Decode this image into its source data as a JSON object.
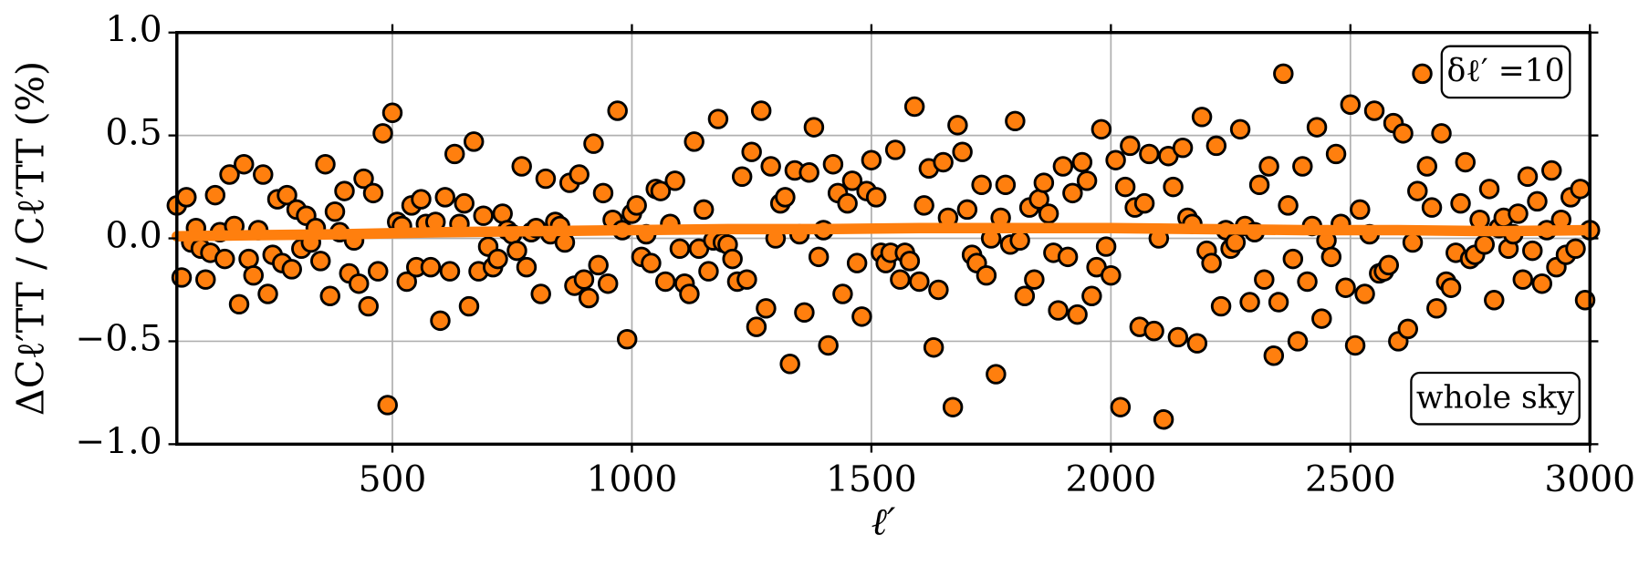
{
  "chart_data": {
    "type": "scatter",
    "xlabel": "ℓ′",
    "ylabel": "ΔCℓ′TT / Cℓ′TT (%)",
    "annotations": [
      "δℓ′ =10",
      "whole sky"
    ],
    "xlim": [
      50,
      3000
    ],
    "ylim": [
      -1,
      1
    ],
    "xticks": [
      500,
      1000,
      1500,
      2000,
      2500,
      3000
    ],
    "yticks": [
      {
        "value": -1,
        "label": "−1.0"
      },
      {
        "value": -0.5,
        "label": "−0.5"
      },
      {
        "value": 0,
        "label": "0.0"
      },
      {
        "value": 0.5,
        "label": "0.5"
      },
      {
        "value": 1,
        "label": "1.0"
      }
    ],
    "grid": true,
    "series": [
      {
        "type": "scatter",
        "color": "#ff7f0e",
        "x": [
          50,
          60,
          70,
          80,
          90,
          100,
          110,
          120,
          130,
          140,
          150,
          160,
          170,
          180,
          190,
          200,
          210,
          220,
          230,
          240,
          250,
          260,
          270,
          280,
          290,
          300,
          310,
          320,
          330,
          340,
          350,
          360,
          370,
          380,
          390,
          400,
          410,
          420,
          430,
          440,
          450,
          460,
          470,
          480,
          490,
          500,
          510,
          520,
          530,
          540,
          550,
          560,
          570,
          580,
          590,
          600,
          610,
          620,
          630,
          640,
          650,
          660,
          670,
          680,
          690,
          700,
          710,
          720,
          730,
          740,
          750,
          760,
          770,
          780,
          790,
          800,
          810,
          820,
          830,
          840,
          850,
          860,
          870,
          880,
          890,
          900,
          910,
          920,
          930,
          940,
          950,
          960,
          970,
          980,
          990,
          1000,
          1010,
          1020,
          1030,
          1040,
          1050,
          1060,
          1070,
          1080,
          1090,
          1100,
          1110,
          1120,
          1130,
          1140,
          1150,
          1160,
          1170,
          1180,
          1190,
          1200,
          1210,
          1220,
          1230,
          1240,
          1250,
          1260,
          1270,
          1280,
          1290,
          1300,
          1310,
          1320,
          1330,
          1340,
          1350,
          1360,
          1370,
          1380,
          1390,
          1400,
          1410,
          1420,
          1430,
          1440,
          1450,
          1460,
          1470,
          1480,
          1490,
          1500,
          1510,
          1520,
          1530,
          1540,
          1550,
          1560,
          1570,
          1580,
          1590,
          1600,
          1610,
          1620,
          1630,
          1640,
          1650,
          1660,
          1670,
          1680,
          1690,
          1700,
          1710,
          1720,
          1730,
          1740,
          1750,
          1760,
          1770,
          1780,
          1790,
          1800,
          1810,
          1820,
          1830,
          1840,
          1850,
          1860,
          1870,
          1880,
          1890,
          1900,
          1910,
          1920,
          1930,
          1940,
          1950,
          1960,
          1970,
          1980,
          1990,
          2000,
          2010,
          2020,
          2030,
          2040,
          2050,
          2060,
          2070,
          2080,
          2090,
          2100,
          2110,
          2120,
          2130,
          2140,
          2150,
          2160,
          2170,
          2180,
          2190,
          2200,
          2210,
          2220,
          2230,
          2240,
          2250,
          2260,
          2270,
          2280,
          2290,
          2300,
          2310,
          2320,
          2330,
          2340,
          2350,
          2360,
          2370,
          2380,
          2390,
          2400,
          2410,
          2420,
          2430,
          2440,
          2450,
          2460,
          2470,
          2480,
          2490,
          2500,
          2510,
          2520,
          2530,
          2540,
          2550,
          2560,
          2570,
          2580,
          2590,
          2600,
          2610,
          2620,
          2630,
          2640,
          2650,
          2660,
          2670,
          2680,
          2690,
          2700,
          2710,
          2720,
          2730,
          2740,
          2750,
          2760,
          2770,
          2780,
          2790,
          2800,
          2810,
          2820,
          2830,
          2840,
          2850,
          2860,
          2870,
          2880,
          2890,
          2900,
          2910,
          2920,
          2930,
          2940,
          2950,
          2960,
          2970,
          2980,
          2990,
          3000
        ],
        "values": [
          0.16,
          -0.19,
          0.2,
          -0.02,
          0.05,
          -0.05,
          -0.2,
          -0.07,
          0.21,
          0.03,
          -0.1,
          0.31,
          0.06,
          -0.32,
          0.36,
          -0.1,
          -0.18,
          0.04,
          0.31,
          -0.27,
          -0.08,
          0.19,
          -0.12,
          0.21,
          -0.15,
          0.14,
          -0.05,
          0.11,
          -0.02,
          0.05,
          -0.11,
          0.36,
          -0.28,
          0.13,
          0.03,
          0.23,
          -0.17,
          -0.01,
          -0.22,
          0.29,
          -0.33,
          0.22,
          -0.16,
          0.51,
          -0.81,
          0.61,
          0.08,
          0.06,
          -0.21,
          0.16,
          -0.14,
          0.19,
          0.07,
          -0.14,
          0.08,
          -0.4,
          0.2,
          -0.16,
          0.41,
          0.07,
          0.17,
          -0.33,
          0.47,
          -0.16,
          0.11,
          -0.04,
          -0.14,
          -0.1,
          0.12,
          0.04,
          0.02,
          -0.06,
          0.35,
          -0.14,
          0.03,
          0.05,
          -0.27,
          0.29,
          0.02,
          0.08,
          0.06,
          -0.02,
          0.27,
          -0.23,
          0.31,
          -0.2,
          -0.29,
          0.46,
          -0.13,
          0.22,
          -0.22,
          0.09,
          0.62,
          0.04,
          -0.49,
          0.12,
          0.16,
          -0.09,
          0.02,
          -0.12,
          0.24,
          0.23,
          -0.21,
          0.07,
          0.28,
          -0.05,
          -0.22,
          -0.27,
          0.47,
          -0.05,
          0.14,
          -0.16,
          -0.01,
          0.58,
          -0.02,
          -0.03,
          -0.1,
          -0.21,
          0.3,
          -0.2,
          0.42,
          -0.43,
          0.62,
          -0.34,
          0.35,
          0.0,
          0.17,
          0.2,
          -0.61,
          0.33,
          0.02,
          -0.36,
          0.32,
          0.54,
          -0.09,
          0.04,
          -0.52,
          0.36,
          0.22,
          -0.27,
          0.17,
          0.28,
          -0.12,
          -0.38,
          0.23,
          0.38,
          0.2,
          -0.07,
          -0.12,
          -0.07,
          0.43,
          -0.2,
          -0.07,
          -0.11,
          0.64,
          -0.21,
          0.16,
          0.34,
          -0.53,
          -0.25,
          0.37,
          0.1,
          -0.82,
          0.55,
          0.42,
          0.14,
          -0.08,
          -0.12,
          0.26,
          -0.18,
          0.0,
          -0.66,
          0.1,
          0.26,
          -0.03,
          0.57,
          -0.01,
          -0.28,
          0.15,
          -0.2,
          0.19,
          0.27,
          0.12,
          -0.07,
          -0.35,
          0.35,
          -0.09,
          0.22,
          -0.37,
          0.37,
          0.28,
          -0.28,
          -0.14,
          0.53,
          -0.04,
          -0.18,
          0.38,
          -0.82,
          0.25,
          0.45,
          0.15,
          -0.43,
          0.17,
          0.41,
          -0.45,
          0.0,
          -0.88,
          0.4,
          0.25,
          -0.48,
          0.44,
          0.1,
          0.07,
          -0.51,
          0.59,
          -0.06,
          -0.12,
          0.45,
          -0.33,
          0.04,
          -0.05,
          -0.02,
          0.53,
          0.06,
          -0.31,
          0.03,
          0.26,
          -0.2,
          0.35,
          -0.57,
          -0.31,
          0.8,
          0.16,
          -0.1,
          -0.5,
          0.35,
          -0.21,
          0.06,
          0.54,
          -0.39,
          -0.01,
          -0.09,
          0.41,
          0.07,
          -0.24,
          0.65,
          -0.52,
          0.14,
          -0.27,
          0.02,
          0.62,
          -0.17,
          -0.16,
          -0.13,
          0.56,
          -0.5,
          0.51,
          -0.44,
          -0.02,
          0.23,
          0.8,
          0.35,
          0.15,
          -0.34,
          0.51,
          -0.21,
          -0.24,
          -0.07,
          0.17,
          0.37,
          -0.1,
          -0.08,
          0.09,
          -0.03,
          0.24,
          -0.3,
          0.05,
          0.1,
          -0.05,
          0.02,
          0.12,
          -0.2,
          0.3,
          -0.06,
          0.18,
          -0.22,
          0.04,
          0.33,
          -0.14,
          0.09,
          -0.08,
          0.2,
          -0.05,
          0.24,
          -0.3,
          0.04
        ]
      },
      {
        "type": "line",
        "color": "#ff7f0e",
        "x": [
          50,
          200,
          400,
          600,
          800,
          1000,
          1200,
          1400,
          1600,
          1800,
          2000,
          2200,
          2400,
          2600,
          2800,
          3000
        ],
        "values": [
          0.01,
          0.015,
          0.02,
          0.03,
          0.035,
          0.04,
          0.045,
          0.045,
          0.05,
          0.05,
          0.05,
          0.045,
          0.04,
          0.04,
          0.035,
          0.04
        ]
      }
    ]
  }
}
